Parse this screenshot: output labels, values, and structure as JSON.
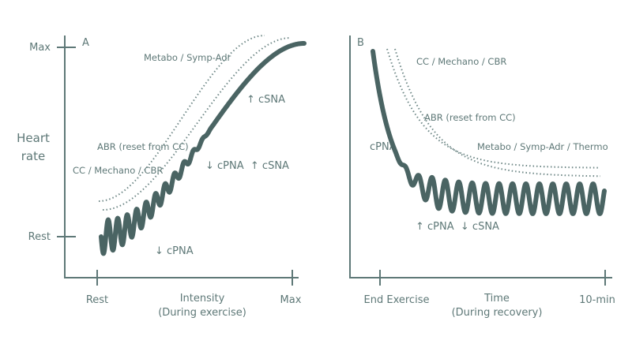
{
  "panel_a": {
    "label": "A",
    "y_axis_label": [
      "Heart",
      "rate"
    ],
    "y_ticks": [
      "Max",
      "Rest"
    ],
    "x_ticks": [
      "Rest",
      "Intensity",
      "Max"
    ],
    "x_axis_note": "(During exercise)",
    "annotations": [
      "Metabo / Symp-Adr",
      "↑ cSNA",
      "ABR (reset from CC)",
      "↓ cPNA  ↑ cSNA",
      "CC / Mechano / CBR",
      "↓ cPNA"
    ]
  },
  "panel_b": {
    "label": "B",
    "x_ticks": [
      "End Exercise",
      "Time",
      "10-min"
    ],
    "x_axis_note": "(During recovery)",
    "annotations": [
      "CC / Mechano / CBR",
      "ABR (reset from CC)",
      "Metabo / Symp-Adr / Thermo",
      "cPNA",
      "↑ cPNA  ↓ cSNA"
    ]
  }
}
